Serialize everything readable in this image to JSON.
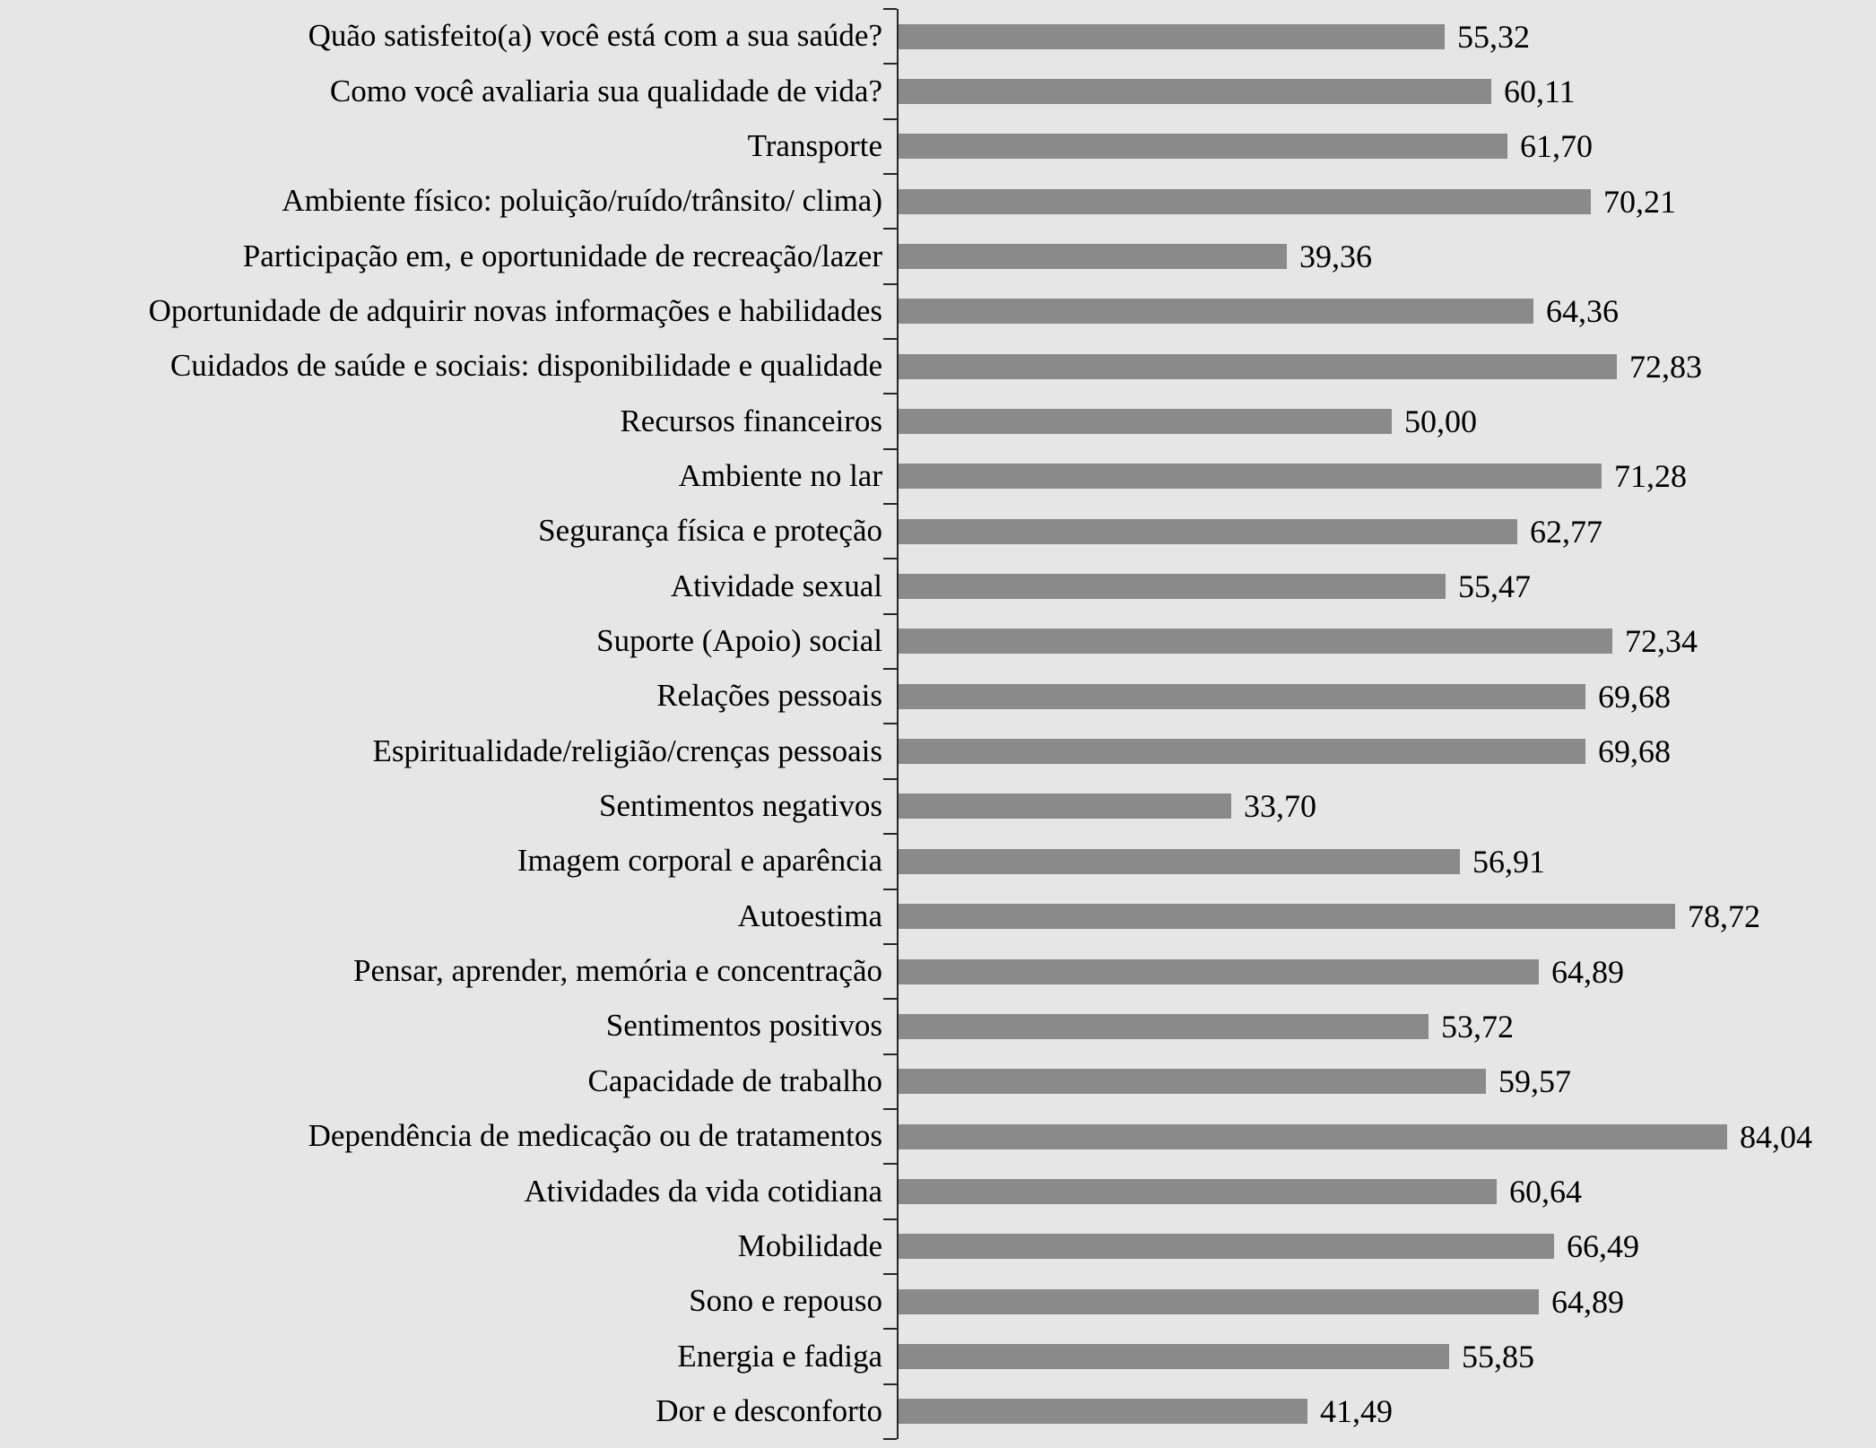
{
  "chart_data": {
    "type": "bar",
    "orientation": "horizontal",
    "title": "",
    "xlabel": "",
    "ylabel": "",
    "xlim": [
      0,
      90
    ],
    "grid": false,
    "legend": "none",
    "bar_color": "#8a8a8a",
    "background_color": "#e7e6e6",
    "axis_color": "#262626",
    "decimal_separator": ",",
    "categories": [
      "Quão satisfeito(a) você está com a sua saúde?",
      "Como você avaliaria sua qualidade de vida?",
      "Transporte",
      "Ambiente físico: poluição/ruído/trânsito/ clima)",
      "Participação em, e oportunidade de recreação/lazer",
      "Oportunidade de adquirir novas informações e habilidades",
      "Cuidados de saúde e sociais: disponibilidade e qualidade",
      "Recursos financeiros",
      "Ambiente no lar",
      "Segurança física e proteção",
      "Atividade sexual",
      "Suporte (Apoio) social",
      "Relações pessoais",
      "Espiritualidade/religião/crenças pessoais",
      "Sentimentos negativos",
      "Imagem corporal e aparência",
      "Autoestima",
      "Pensar, aprender, memória e concentração",
      "Sentimentos positivos",
      "Capacidade de trabalho",
      "Dependência de medicação ou de tratamentos",
      "Atividades da vida cotidiana",
      "Mobilidade",
      "Sono e repouso",
      "Energia e fadiga",
      "Dor e desconforto"
    ],
    "values": [
      55.32,
      60.11,
      61.7,
      70.21,
      39.36,
      64.36,
      72.83,
      50.0,
      71.28,
      62.77,
      55.47,
      72.34,
      69.68,
      69.68,
      33.7,
      56.91,
      78.72,
      64.89,
      53.72,
      59.57,
      84.04,
      60.64,
      66.49,
      64.89,
      55.85,
      41.49
    ],
    "value_labels": [
      "55,32",
      "60,11",
      "61,70",
      "70,21",
      "39,36",
      "64,36",
      "72,83",
      "50,00",
      "71,28",
      "62,77",
      "55,47",
      "72,34",
      "69,68",
      "69,68",
      "33,70",
      "56,91",
      "78,72",
      "64,89",
      "53,72",
      "59,57",
      "84,04",
      "60,64",
      "66,49",
      "64,89",
      "55,85",
      "41,49"
    ]
  }
}
